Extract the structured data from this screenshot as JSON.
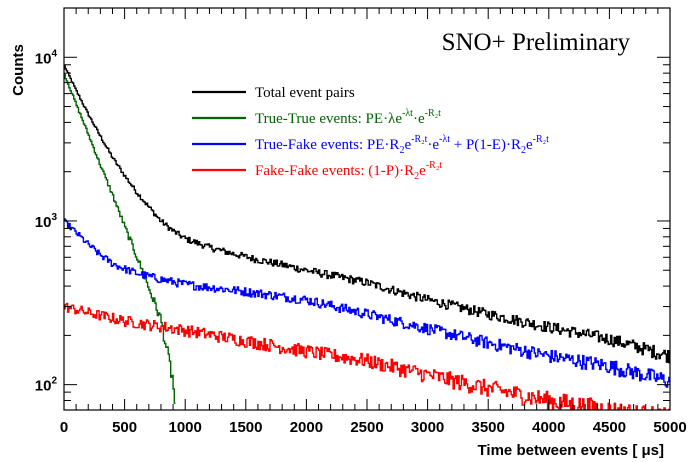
{
  "chart_data": {
    "type": "line",
    "title": "SNO+ Preliminary",
    "xlabel": "Time between events [ μs]",
    "ylabel": "Counts",
    "xlim": [
      0,
      5000
    ],
    "ylim": [
      70,
      20000
    ],
    "yscale": "log",
    "grid": false,
    "legend_position": "top-center",
    "x_ticks": [
      "0",
      "500",
      "1000",
      "1500",
      "2000",
      "2500",
      "3000",
      "3500",
      "4000",
      "4500",
      "5000"
    ],
    "y_ticks": [
      {
        "base": "10",
        "exp": "2"
      },
      {
        "base": "10",
        "exp": "3"
      },
      {
        "base": "10",
        "exp": "4"
      }
    ],
    "series": [
      {
        "name": "Total event pairs",
        "color": "#000000",
        "x": [
          0,
          100,
          200,
          300,
          400,
          500,
          600,
          700,
          800,
          900,
          1000,
          1200,
          1400,
          1600,
          1800,
          2000,
          2500,
          3000,
          3500,
          4000,
          4500,
          5000
        ],
        "values": [
          9000,
          6300,
          4500,
          3300,
          2450,
          1900,
          1500,
          1220,
          1000,
          870,
          780,
          690,
          630,
          580,
          540,
          500,
          420,
          330,
          270,
          225,
          190,
          150
        ]
      },
      {
        "name": "True-True events: PE·λe^{-λt}·e^{-R₂t}",
        "color": "#006400",
        "x": [
          0,
          100,
          200,
          300,
          400,
          500,
          600,
          700,
          800,
          900,
          920
        ],
        "values": [
          8000,
          5200,
          3400,
          2200,
          1450,
          930,
          610,
          390,
          250,
          105,
          70
        ]
      },
      {
        "name": "True-Fake events: PE·R₂e^{-R₂t}·e^{-λt} + P(1-E)·R₂e^{-R₂t}",
        "color": "#0000ff",
        "x": [
          0,
          100,
          200,
          300,
          400,
          500,
          600,
          800,
          1000,
          1500,
          2000,
          2500,
          3000,
          3500,
          4000,
          4500,
          5000
        ],
        "values": [
          1000,
          850,
          720,
          620,
          550,
          510,
          480,
          440,
          410,
          370,
          330,
          270,
          220,
          180,
          150,
          130,
          105
        ]
      },
      {
        "name": "Fake-Fake events: (1-P)·R₂e^{-R₂t}",
        "color": "#ff0000",
        "x": [
          0,
          250,
          500,
          1000,
          1500,
          2000,
          2500,
          3000,
          3500,
          4000,
          4500,
          5000
        ],
        "values": [
          300,
          270,
          245,
          215,
          185,
          160,
          140,
          115,
          95,
          80,
          70,
          62
        ]
      }
    ]
  },
  "legend": [
    {
      "color": "#000000",
      "segments": [
        {
          "t": "Total event pairs"
        }
      ]
    },
    {
      "color": "#006400",
      "segments": [
        {
          "t": "True-True events: PE·λe"
        },
        {
          "t": "-λt",
          "sup": true
        },
        {
          "t": "·e"
        },
        {
          "t": "-R₂t",
          "sup": true
        }
      ]
    },
    {
      "color": "#0000ff",
      "segments": [
        {
          "t": "True-Fake events: PE·R"
        },
        {
          "t": "2",
          "sub": true
        },
        {
          "t": "e"
        },
        {
          "t": "-R₂t",
          "sup": true
        },
        {
          "t": "·e"
        },
        {
          "t": "-λt",
          "sup": true
        },
        {
          "t": " + P(1-E)·R"
        },
        {
          "t": "2",
          "sub": true
        },
        {
          "t": "e"
        },
        {
          "t": "-R₂t",
          "sup": true
        }
      ]
    },
    {
      "color": "#ff0000",
      "segments": [
        {
          "t": "Fake-Fake events: (1-P)·R"
        },
        {
          "t": "2",
          "sub": true
        },
        {
          "t": "e"
        },
        {
          "t": "-R₂t",
          "sup": true
        }
      ]
    }
  ]
}
